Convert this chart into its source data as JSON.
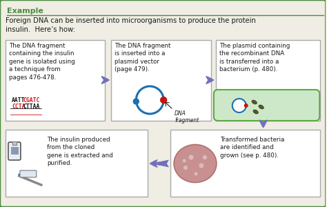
{
  "title": "Example",
  "subtitle": "Foreign DNA can be inserted into microorganisms to produce the protein\ninsulin.  Here’s how:",
  "outer_bg": "#f0ede4",
  "box_bg": "#ffffff",
  "border_color": "#4a8c3f",
  "arrow_color": "#7070bb",
  "box1_text": "The DNA fragment\ncontaining the insulin\ngene is isolated using\na technique from\npages 476-478.",
  "box2_text": "The DNA fragment\nis inserted into a\nplasmid vector\n(page 479).",
  "box3_text": "The plasmid containing\nthe recombinant DNA\nis transferred into a\nbacterium (p. 480).",
  "box4_text": "The insulin produced\nfrom the cloned\ngene is extracted and\npurified.",
  "box5_text": "Transformed bacteria\nare identified and\ngrown (see p. 480).",
  "dna_seq1_black": "AATT",
  "dna_seq1_red": "CGATC",
  "dna_seq2_red": "CCTA",
  "dna_seq2_black": "CTTAA",
  "dna_fragment_label": "DNA\nfragment",
  "text_color": "#1a1a1a",
  "title_color": "#4a8c3f",
  "dna_color_black": "#111111",
  "dna_color_red": "#cc1111",
  "plasmid_color": "#1a70b0",
  "bact_fill": "#cde8c8",
  "bact_border": "#5aaa44",
  "colony_color": "#c89090",
  "line_color": "#4a8c3f"
}
